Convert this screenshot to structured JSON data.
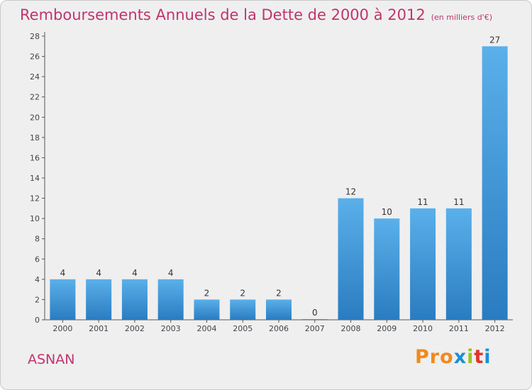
{
  "header": {
    "title": "Remboursements Annuels de la Dette de 2000 à 2012",
    "subtitle": "(en milliers d'€)"
  },
  "footer": {
    "town": "ASNAN",
    "logo_text": "Proxiti"
  },
  "colors": {
    "title": "#c0346e",
    "bar_top": "#5ab0ea",
    "bar_bottom": "#2a7cc0",
    "background": "#efefef",
    "logo_letters": [
      "#f08a1c",
      "#f08a1c",
      "#f08a1c",
      "#1a8fd4",
      "#9bc21f",
      "#e0332a",
      "#1a8fd4"
    ]
  },
  "chart_data": {
    "type": "bar",
    "title": "Remboursements Annuels de la Dette de 2000 à 2012",
    "subtitle": "(en milliers d'€)",
    "categories": [
      "2000",
      "2001",
      "2002",
      "2003",
      "2004",
      "2005",
      "2006",
      "2007",
      "2008",
      "2009",
      "2010",
      "2011",
      "2012"
    ],
    "values": [
      4,
      4,
      4,
      4,
      2,
      2,
      2,
      0,
      12,
      10,
      11,
      11,
      27
    ],
    "data_labels": [
      "4",
      "4",
      "4",
      "4",
      "2",
      "2",
      "2",
      "0",
      "12",
      "10",
      "11",
      "11",
      "27"
    ],
    "ylim": [
      0,
      28
    ],
    "yticks": [
      0,
      2,
      4,
      6,
      8,
      10,
      12,
      14,
      16,
      18,
      20,
      22,
      24,
      26,
      28
    ],
    "grid": false,
    "legend": "none"
  }
}
